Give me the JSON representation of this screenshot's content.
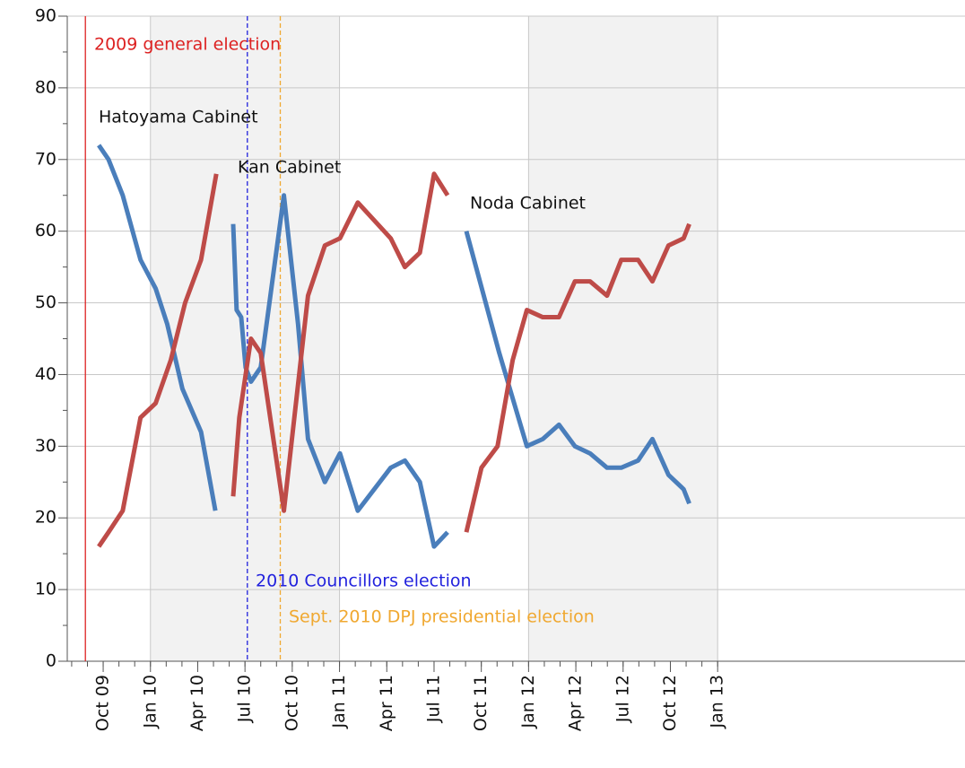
{
  "chart_data": {
    "type": "line",
    "xlim": [
      -2.28,
      54.7
    ],
    "ylim": [
      0,
      90
    ],
    "yticks": [
      0,
      10,
      20,
      30,
      40,
      50,
      60,
      70,
      80,
      90
    ],
    "xticks": [
      {
        "value": 0,
        "label": "Oct 09"
      },
      {
        "value": 3,
        "label": "Jan 10"
      },
      {
        "value": 6,
        "label": "Apr 10"
      },
      {
        "value": 9,
        "label": "Jul 10"
      },
      {
        "value": 12,
        "label": "Oct 10"
      },
      {
        "value": 15,
        "label": "Jan 11"
      },
      {
        "value": 18,
        "label": "Apr 11"
      },
      {
        "value": 21,
        "label": "Jul 11"
      },
      {
        "value": 24,
        "label": "Oct 11"
      },
      {
        "value": 27,
        "label": "Jan 12"
      },
      {
        "value": 30,
        "label": "Apr 12"
      },
      {
        "value": 33,
        "label": "Jul 12"
      },
      {
        "value": 36,
        "label": "Oct 12"
      },
      {
        "value": 39,
        "label": "Jan 13"
      }
    ],
    "grid": true,
    "series": [
      {
        "color": "#4a7ebb",
        "x": [
          -0.28,
          0.34,
          1.24,
          2.37,
          3.33,
          4.07,
          5.03,
          6.21,
          7.12,
          null,
          8.25,
          8.47,
          8.76,
          9.04,
          9.38,
          10,
          11.47,
          12.37,
          13,
          14.07,
          15.03,
          16.16,
          18.25,
          19.15,
          20.1,
          21.0,
          21.86,
          null,
          23.05,
          25.14,
          26.89,
          27.9,
          28.93,
          29.94,
          30.9,
          31.98,
          32.88,
          33.95,
          34.86,
          35.88,
          36.84,
          37.2
        ],
        "values": [
          72,
          70,
          65,
          56,
          52,
          47,
          38,
          32,
          21,
          null,
          61,
          49,
          48,
          41,
          39,
          41,
          65,
          47,
          31,
          25,
          29,
          21,
          27,
          28,
          25,
          16,
          18,
          null,
          60,
          43,
          30,
          31,
          33,
          30,
          29,
          27,
          27,
          28,
          31,
          26,
          24,
          22
        ]
      },
      {
        "color": "#be4b48",
        "x": [
          -0.28,
          0.34,
          1.24,
          2.37,
          3.33,
          4.29,
          5.2,
          6.21,
          7.18,
          null,
          8.25,
          8.64,
          9.38,
          10,
          11.47,
          13,
          14.07,
          15.03,
          16.16,
          18.25,
          19.15,
          20.1,
          21.0,
          21.86,
          null,
          23.05,
          24.01,
          25.03,
          25.99,
          26.89,
          27.9,
          28.93,
          29.94,
          30.9,
          31.98,
          32.88,
          33.95,
          34.86,
          35.88,
          36.84,
          37.2
        ],
        "values": [
          16,
          18,
          21,
          34,
          36,
          42,
          50,
          56,
          68,
          null,
          23,
          34,
          45,
          43,
          21,
          51,
          58,
          59,
          64,
          59,
          55,
          57,
          68,
          65,
          null,
          18,
          27,
          30,
          42,
          49,
          48,
          48,
          53,
          53,
          51,
          56,
          56,
          53,
          58,
          59,
          61
        ]
      }
    ],
    "events": [
      {
        "text": "2009 general election",
        "x": -1.13,
        "color": "#dd2222",
        "style": "solid"
      },
      {
        "text": "2010 Councillors election",
        "x": 9.15,
        "color": "#2222dd",
        "style": "dashed"
      },
      {
        "text": "Sept. 2010 DPJ presidential election",
        "x": 11.24,
        "color": "#f0a830",
        "style": "dashed"
      }
    ],
    "labels": [
      "Hatoyama Cabinet",
      "Kan Cabinet",
      "Noda Cabinet"
    ]
  }
}
